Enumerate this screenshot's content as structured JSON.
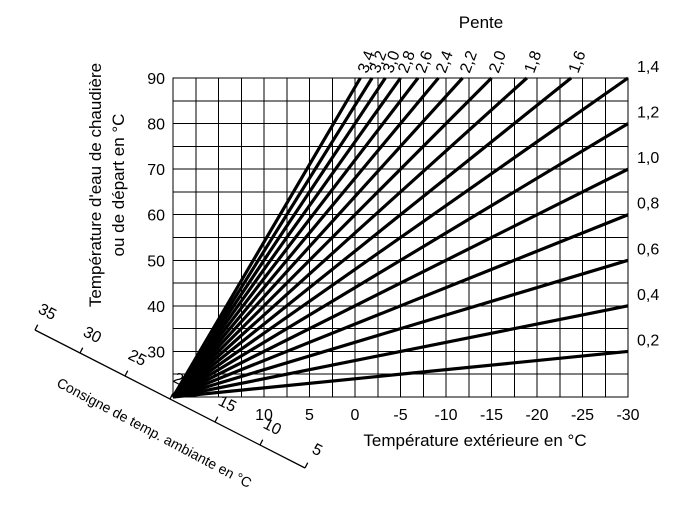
{
  "chart_data": {
    "type": "line",
    "title": "Pente",
    "xlabel": "Température extérieure en °C",
    "ylabel_line1": "Température d'eau de chaudière",
    "ylabel_line2": "ou de départ en °C",
    "diag_label": "Consigne de temp. ambiante en °C",
    "xlim": [
      20,
      -30
    ],
    "ylim": [
      20,
      90
    ],
    "x_ticks": [
      10,
      5,
      0,
      -5,
      -10,
      -15,
      -20,
      -25,
      -30
    ],
    "x_tick_labels": [
      "10",
      "5",
      "0",
      "-5",
      "-10",
      "-15",
      "-20",
      "-25",
      "-30"
    ],
    "y_ticks": [
      30,
      40,
      50,
      60,
      70,
      80,
      90
    ],
    "y_tick_labels": [
      "30",
      "40",
      "50",
      "60",
      "70",
      "80",
      "90"
    ],
    "diag_ticks": [
      35,
      30,
      25,
      20,
      15,
      10,
      5
    ],
    "diag_tick_labels": [
      "35",
      "30",
      "25",
      "20",
      "15",
      "10",
      "5"
    ],
    "origin": {
      "x": 20,
      "y": 20
    },
    "series": [
      {
        "name": "3,4",
        "slope": 3.4,
        "label_side": "top"
      },
      {
        "name": "3,2",
        "slope": 3.2,
        "label_side": "top"
      },
      {
        "name": "3,0",
        "slope": 3.0,
        "label_side": "top"
      },
      {
        "name": "2,8",
        "slope": 2.8,
        "label_side": "top"
      },
      {
        "name": "2,6",
        "slope": 2.6,
        "label_side": "top"
      },
      {
        "name": "2,4",
        "slope": 2.4,
        "label_side": "top"
      },
      {
        "name": "2,2",
        "slope": 2.2,
        "label_side": "top"
      },
      {
        "name": "2,0",
        "slope": 2.0,
        "label_side": "top"
      },
      {
        "name": "1,8",
        "slope": 1.8,
        "label_side": "top"
      },
      {
        "name": "1,6",
        "slope": 1.6,
        "label_side": "top"
      },
      {
        "name": "1,4",
        "slope": 1.4,
        "label_side": "right"
      },
      {
        "name": "1,2",
        "slope": 1.2,
        "label_side": "right"
      },
      {
        "name": "1,0",
        "slope": 1.0,
        "label_side": "right"
      },
      {
        "name": "0,8",
        "slope": 0.8,
        "label_side": "right"
      },
      {
        "name": "0,6",
        "slope": 0.6,
        "label_side": "right"
      },
      {
        "name": "0,4",
        "slope": 0.4,
        "label_side": "right"
      },
      {
        "name": "0,2",
        "slope": 0.2,
        "label_side": "right"
      }
    ]
  }
}
